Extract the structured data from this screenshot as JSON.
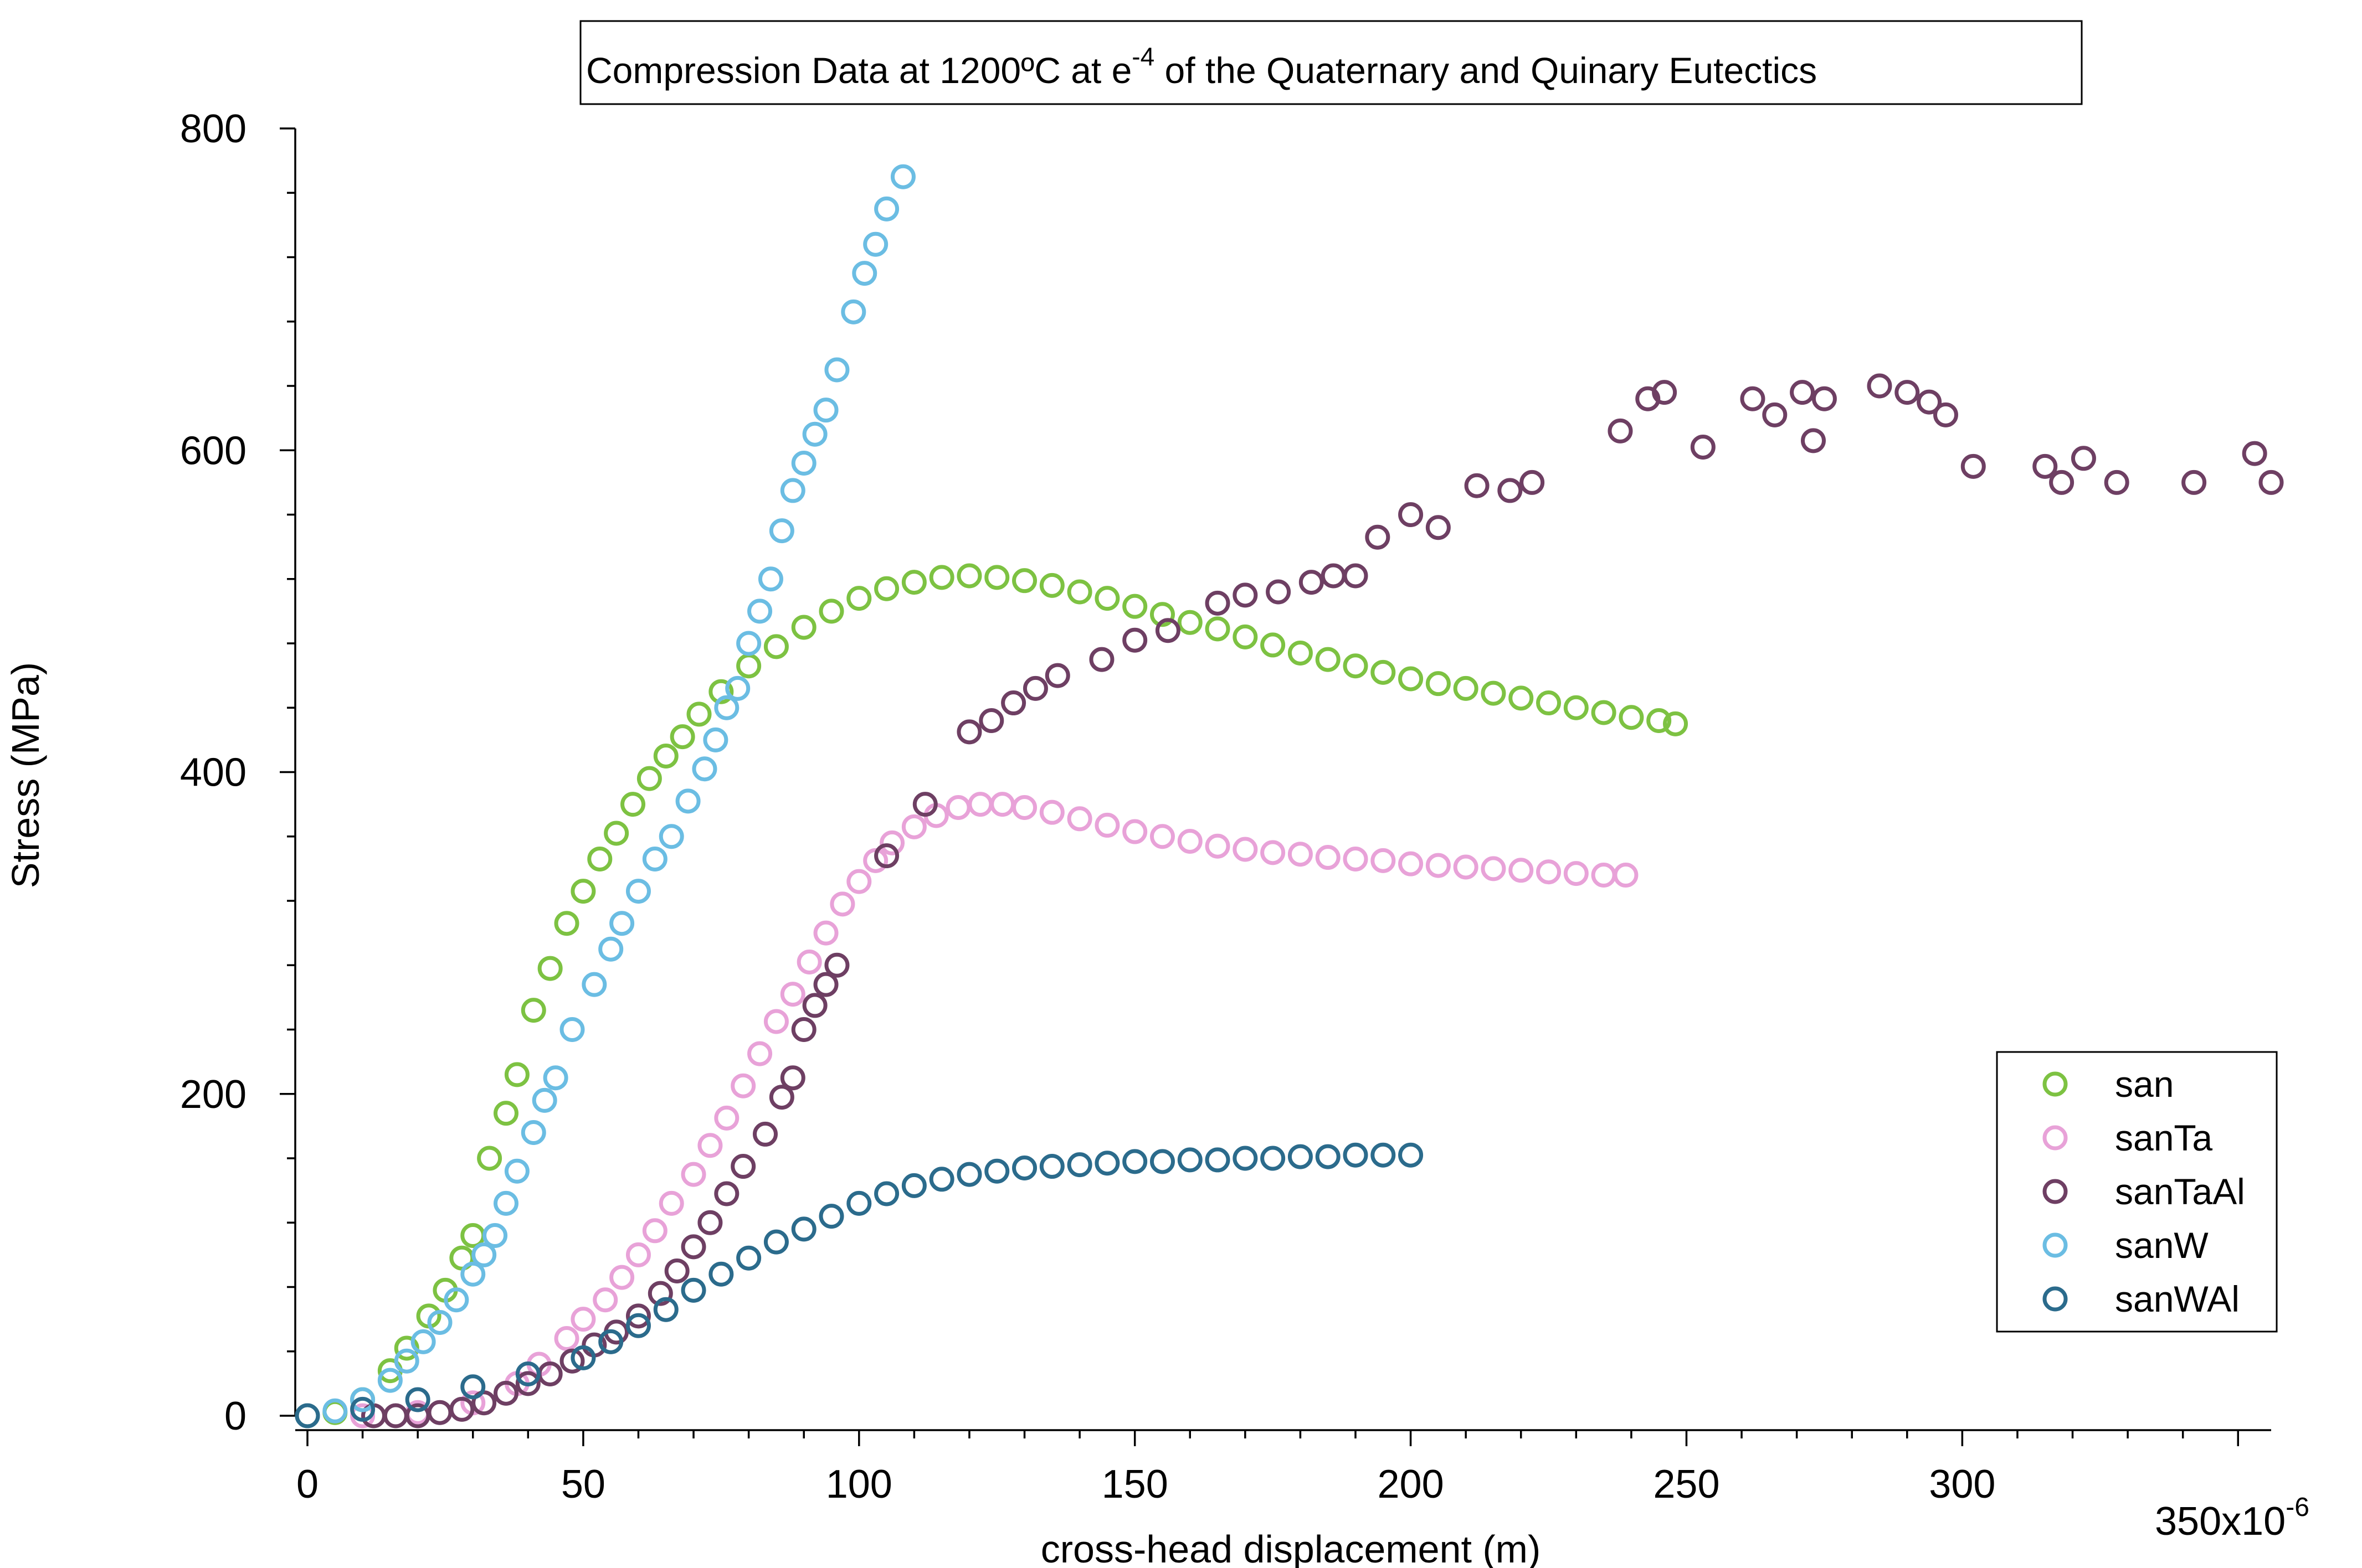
{
  "chart_data": {
    "type": "scatter",
    "title": "Compression Data at 1200ºC at e",
    "title_superscript": "-4",
    "title_suffix": " of the Quaternary and Quinary Eutectics",
    "xlabel": "cross-head displacement (m)",
    "ylabel": "Stress (MPa)",
    "x_exponent_label": "350x10",
    "x_exponent_superscript": "-6",
    "x_scale_factor": 1e-06,
    "xlim": [
      0,
      356
    ],
    "ylim": [
      0,
      800
    ],
    "x_ticks": [
      0,
      50,
      100,
      150,
      200,
      250,
      300
    ],
    "x_tick_labels": [
      "0",
      "50",
      "100",
      "150",
      "200",
      "250",
      "300"
    ],
    "y_ticks": [
      0,
      200,
      400,
      600,
      800
    ],
    "y_tick_labels": [
      "0",
      "200",
      "400",
      "600",
      "800"
    ],
    "grid": false,
    "legend_position": "bottom-right",
    "series": [
      {
        "name": "san",
        "color": "#7dc242",
        "points": [
          [
            0,
            0
          ],
          [
            5,
            2
          ],
          [
            10,
            10
          ],
          [
            15,
            28
          ],
          [
            18,
            42
          ],
          [
            22,
            62
          ],
          [
            25,
            78
          ],
          [
            28,
            98
          ],
          [
            30,
            112
          ],
          [
            33,
            160
          ],
          [
            36,
            188
          ],
          [
            38,
            212
          ],
          [
            41,
            252
          ],
          [
            44,
            278
          ],
          [
            47,
            306
          ],
          [
            50,
            326
          ],
          [
            53,
            346
          ],
          [
            56,
            362
          ],
          [
            59,
            380
          ],
          [
            62,
            396
          ],
          [
            65,
            410
          ],
          [
            68,
            422
          ],
          [
            71,
            436
          ],
          [
            75,
            450
          ],
          [
            80,
            466
          ],
          [
            85,
            478
          ],
          [
            90,
            490
          ],
          [
            95,
            500
          ],
          [
            100,
            508
          ],
          [
            105,
            514
          ],
          [
            110,
            518
          ],
          [
            115,
            521
          ],
          [
            120,
            522
          ],
          [
            125,
            521
          ],
          [
            130,
            519
          ],
          [
            135,
            516
          ],
          [
            140,
            512
          ],
          [
            145,
            508
          ],
          [
            150,
            503
          ],
          [
            155,
            498
          ],
          [
            160,
            493
          ],
          [
            165,
            489
          ],
          [
            170,
            484
          ],
          [
            175,
            479
          ],
          [
            180,
            474
          ],
          [
            185,
            470
          ],
          [
            190,
            466
          ],
          [
            195,
            462
          ],
          [
            200,
            458
          ],
          [
            205,
            455
          ],
          [
            210,
            452
          ],
          [
            215,
            449
          ],
          [
            220,
            446
          ],
          [
            225,
            443
          ],
          [
            230,
            440
          ],
          [
            235,
            437
          ],
          [
            240,
            434
          ],
          [
            245,
            432
          ],
          [
            248,
            430
          ]
        ]
      },
      {
        "name": "sanTa",
        "color": "#e8a2d8",
        "points": [
          [
            10,
            0
          ],
          [
            20,
            2
          ],
          [
            30,
            8
          ],
          [
            38,
            20
          ],
          [
            42,
            32
          ],
          [
            47,
            48
          ],
          [
            50,
            60
          ],
          [
            54,
            72
          ],
          [
            57,
            86
          ],
          [
            60,
            100
          ],
          [
            63,
            115
          ],
          [
            66,
            132
          ],
          [
            70,
            150
          ],
          [
            73,
            168
          ],
          [
            76,
            185
          ],
          [
            79,
            205
          ],
          [
            82,
            225
          ],
          [
            85,
            245
          ],
          [
            88,
            262
          ],
          [
            91,
            282
          ],
          [
            94,
            300
          ],
          [
            97,
            318
          ],
          [
            100,
            332
          ],
          [
            103,
            345
          ],
          [
            106,
            356
          ],
          [
            110,
            366
          ],
          [
            114,
            373
          ],
          [
            118,
            378
          ],
          [
            122,
            380
          ],
          [
            126,
            380
          ],
          [
            130,
            378
          ],
          [
            135,
            375
          ],
          [
            140,
            371
          ],
          [
            145,
            367
          ],
          [
            150,
            363
          ],
          [
            155,
            360
          ],
          [
            160,
            357
          ],
          [
            165,
            354
          ],
          [
            170,
            352
          ],
          [
            175,
            350
          ],
          [
            180,
            349
          ],
          [
            185,
            347
          ],
          [
            190,
            346
          ],
          [
            195,
            345
          ],
          [
            200,
            343
          ],
          [
            205,
            342
          ],
          [
            210,
            341
          ],
          [
            215,
            340
          ],
          [
            220,
            339
          ],
          [
            225,
            338
          ],
          [
            230,
            337
          ],
          [
            235,
            336
          ],
          [
            239,
            336
          ]
        ]
      },
      {
        "name": "sanTaAl",
        "color": "#6e3f63",
        "points": [
          [
            12,
            0
          ],
          [
            16,
            0
          ],
          [
            20,
            0
          ],
          [
            24,
            2
          ],
          [
            28,
            4
          ],
          [
            32,
            8
          ],
          [
            36,
            14
          ],
          [
            40,
            20
          ],
          [
            44,
            26
          ],
          [
            48,
            34
          ],
          [
            52,
            44
          ],
          [
            56,
            52
          ],
          [
            60,
            62
          ],
          [
            64,
            76
          ],
          [
            67,
            90
          ],
          [
            70,
            105
          ],
          [
            73,
            120
          ],
          [
            76,
            138
          ],
          [
            79,
            155
          ],
          [
            83,
            175
          ],
          [
            86,
            198
          ],
          [
            88,
            210
          ],
          [
            90,
            240
          ],
          [
            92,
            255
          ],
          [
            94,
            268
          ],
          [
            96,
            280
          ],
          [
            105,
            348
          ],
          [
            112,
            380
          ],
          [
            120,
            425
          ],
          [
            124,
            432
          ],
          [
            128,
            443
          ],
          [
            132,
            452
          ],
          [
            136,
            460
          ],
          [
            144,
            470
          ],
          [
            150,
            482
          ],
          [
            156,
            488
          ],
          [
            165,
            505
          ],
          [
            170,
            510
          ],
          [
            176,
            512
          ],
          [
            182,
            518
          ],
          [
            186,
            522
          ],
          [
            190,
            522
          ],
          [
            194,
            546
          ],
          [
            200,
            560
          ],
          [
            205,
            552
          ],
          [
            212,
            578
          ],
          [
            218,
            575
          ],
          [
            222,
            580
          ],
          [
            238,
            612
          ],
          [
            243,
            632
          ],
          [
            246,
            636
          ],
          [
            253,
            602
          ],
          [
            262,
            632
          ],
          [
            266,
            622
          ],
          [
            271,
            636
          ],
          [
            273,
            606
          ],
          [
            275,
            632
          ],
          [
            285,
            640
          ],
          [
            290,
            636
          ],
          [
            294,
            630
          ],
          [
            297,
            622
          ],
          [
            302,
            590
          ],
          [
            315,
            590
          ],
          [
            318,
            580
          ],
          [
            322,
            595
          ],
          [
            328,
            580
          ],
          [
            342,
            580
          ],
          [
            353,
            598
          ],
          [
            356,
            580
          ]
        ]
      },
      {
        "name": "sanW",
        "color": "#6bbde3",
        "points": [
          [
            0,
            0
          ],
          [
            5,
            3
          ],
          [
            10,
            10
          ],
          [
            15,
            22
          ],
          [
            18,
            34
          ],
          [
            21,
            46
          ],
          [
            24,
            58
          ],
          [
            27,
            72
          ],
          [
            30,
            88
          ],
          [
            32,
            100
          ],
          [
            34,
            112
          ],
          [
            36,
            132
          ],
          [
            38,
            152
          ],
          [
            41,
            176
          ],
          [
            43,
            196
          ],
          [
            45,
            210
          ],
          [
            48,
            240
          ],
          [
            52,
            268
          ],
          [
            55,
            290
          ],
          [
            57,
            306
          ],
          [
            60,
            326
          ],
          [
            63,
            346
          ],
          [
            66,
            360
          ],
          [
            69,
            382
          ],
          [
            72,
            402
          ],
          [
            74,
            420
          ],
          [
            76,
            440
          ],
          [
            78,
            452
          ],
          [
            80,
            480
          ],
          [
            82,
            500
          ],
          [
            84,
            520
          ],
          [
            86,
            550
          ],
          [
            88,
            575
          ],
          [
            90,
            592
          ],
          [
            92,
            610
          ],
          [
            94,
            625
          ],
          [
            96,
            650
          ],
          [
            99,
            686
          ],
          [
            101,
            710
          ],
          [
            103,
            728
          ],
          [
            105,
            750
          ],
          [
            108,
            770
          ]
        ]
      },
      {
        "name": "sanWAl",
        "color": "#2b6b8c",
        "points": [
          [
            0,
            0
          ],
          [
            10,
            4
          ],
          [
            20,
            10
          ],
          [
            30,
            18
          ],
          [
            40,
            26
          ],
          [
            50,
            36
          ],
          [
            55,
            46
          ],
          [
            60,
            56
          ],
          [
            65,
            66
          ],
          [
            70,
            78
          ],
          [
            75,
            88
          ],
          [
            80,
            98
          ],
          [
            85,
            108
          ],
          [
            90,
            116
          ],
          [
            95,
            124
          ],
          [
            100,
            132
          ],
          [
            105,
            138
          ],
          [
            110,
            143
          ],
          [
            115,
            147
          ],
          [
            120,
            150
          ],
          [
            125,
            152
          ],
          [
            130,
            154
          ],
          [
            135,
            155
          ],
          [
            140,
            156
          ],
          [
            145,
            157
          ],
          [
            150,
            158
          ],
          [
            155,
            158
          ],
          [
            160,
            159
          ],
          [
            165,
            159
          ],
          [
            170,
            160
          ],
          [
            175,
            160
          ],
          [
            180,
            161
          ],
          [
            185,
            161
          ],
          [
            190,
            162
          ],
          [
            195,
            162
          ],
          [
            200,
            162
          ]
        ]
      }
    ]
  }
}
